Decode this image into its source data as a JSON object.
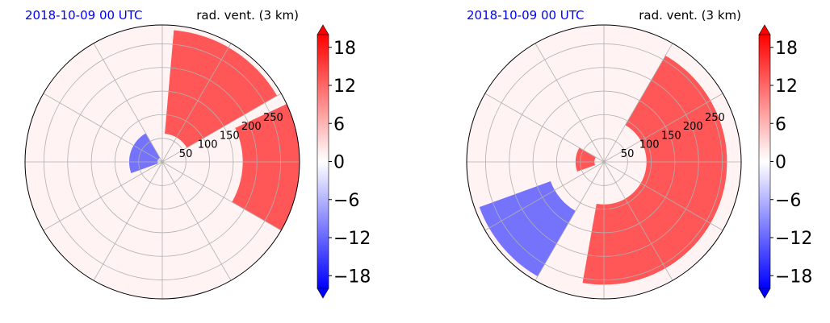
{
  "chart_data": [
    {
      "type": "heatmap",
      "projection": "polar",
      "title_left": "2018-10-09 00 UTC",
      "title_right": "rad. vent. (3 km)",
      "title_left_color": "#0000ff",
      "radial_ticks": [
        "50",
        "100",
        "150",
        "200",
        "250"
      ],
      "radial_values": [
        50,
        100,
        150,
        200,
        250
      ],
      "rlim": [
        0,
        290
      ],
      "grid": true,
      "colorbar": {
        "ticks": [
          "18",
          "12",
          "6",
          "0",
          "−6",
          "−12",
          "−18"
        ],
        "values": [
          18,
          12,
          6,
          0,
          -6,
          -12,
          -18
        ],
        "range": [
          -20,
          20
        ],
        "colormap": "blue-white-red",
        "extend": "both"
      },
      "features": [
        {
          "kind": "positive",
          "theta_deg": [
            30,
            85
          ],
          "r": [
            60,
            280
          ]
        },
        {
          "kind": "positive",
          "theta_deg": [
            -30,
            25
          ],
          "r": [
            170,
            290
          ]
        },
        {
          "kind": "negative",
          "theta_deg": [
            120,
            200
          ],
          "r": [
            10,
            70
          ]
        }
      ]
    },
    {
      "type": "heatmap",
      "projection": "polar",
      "title_left": "2018-10-09 00 UTC",
      "title_right": "rad. vent. (3 km)",
      "title_left_color": "#0000ff",
      "radial_ticks": [
        "50",
        "100",
        "150",
        "200",
        "250"
      ],
      "radial_values": [
        50,
        100,
        150,
        200,
        250
      ],
      "rlim": [
        0,
        290
      ],
      "grid": true,
      "colorbar": {
        "ticks": [
          "18",
          "12",
          "6",
          "0",
          "−6",
          "−12",
          "−18"
        ],
        "values": [
          18,
          12,
          6,
          0,
          -6,
          -12,
          -18
        ],
        "range": [
          -20,
          20
        ],
        "colormap": "blue-white-red",
        "extend": "both"
      },
      "features": [
        {
          "kind": "positive",
          "theta_deg": [
            -100,
            60
          ],
          "r": [
            90,
            260
          ]
        },
        {
          "kind": "negative",
          "theta_deg": [
            200,
            240
          ],
          "r": [
            120,
            280
          ]
        },
        {
          "kind": "positive",
          "theta_deg": [
            150,
            200
          ],
          "r": [
            20,
            60
          ]
        }
      ]
    }
  ]
}
